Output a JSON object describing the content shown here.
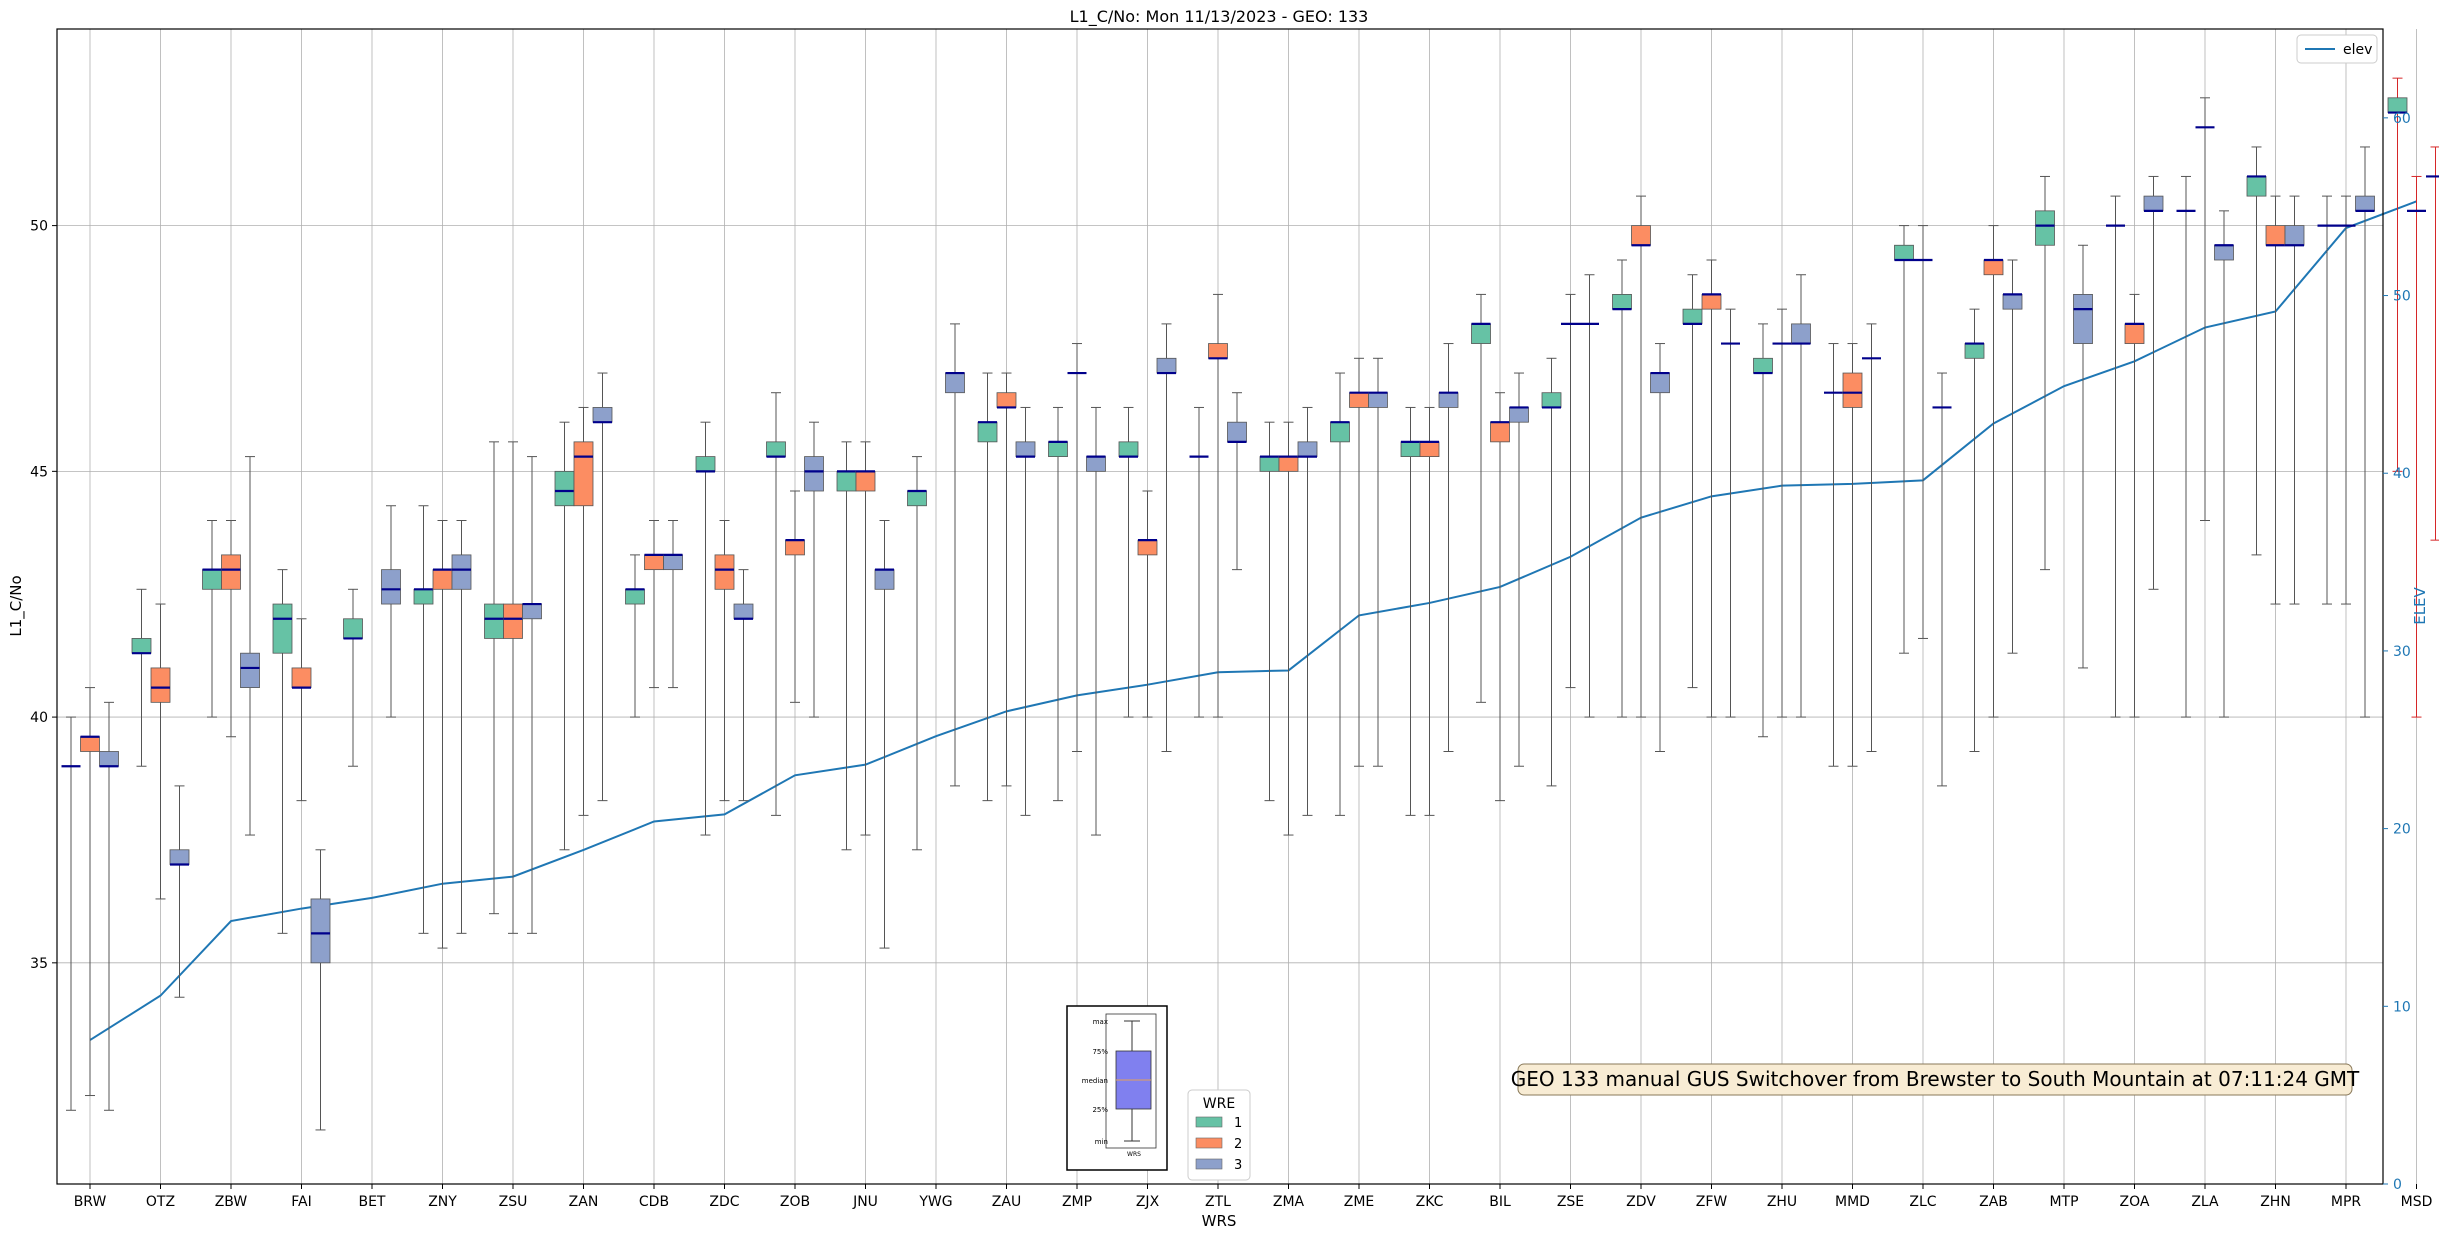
{
  "chart_data": {
    "type": "box",
    "title": "L1_C/No: Mon 11/13/2023 - GEO: 133",
    "xlabel": "WRS",
    "ylabel": "L1_C/No",
    "y2label": "ELEV",
    "ylim": [
      30.5,
      54
    ],
    "y2lim": [
      0,
      65
    ],
    "yticks": [
      35,
      40,
      45,
      50
    ],
    "y2ticks": [
      0,
      10,
      20,
      30,
      40,
      50,
      60
    ],
    "grid": true,
    "categories": [
      "BRW",
      "OTZ",
      "ZBW",
      "FAI",
      "BET",
      "ZNY",
      "ZSU",
      "ZAN",
      "CDB",
      "ZDC",
      "ZOB",
      "JNU",
      "YWG",
      "ZAU",
      "ZMP",
      "ZJX",
      "ZTL",
      "ZMA",
      "ZME",
      "ZKC",
      "BIL",
      "ZSE",
      "ZDV",
      "ZFW",
      "ZHU",
      "MMD",
      "ZLC",
      "ZAB",
      "MTP",
      "ZOA",
      "ZLA",
      "ZHN",
      "MPR",
      "MSD"
    ],
    "wre_colors": {
      "1": "#66c2a5",
      "2": "#fc8d62",
      "3": "#8da0cb"
    },
    "boxes": [
      {
        "cat": "BRW",
        "wre": 1,
        "min": 32,
        "q1": 39,
        "median": 39,
        "q3": 39,
        "max": 40
      },
      {
        "cat": "BRW",
        "wre": 2,
        "min": 32.3,
        "q1": 39.3,
        "median": 39.6,
        "q3": 39.6,
        "max": 40.6
      },
      {
        "cat": "BRW",
        "wre": 3,
        "min": 32,
        "q1": 39,
        "median": 39,
        "q3": 39.3,
        "max": 40.3
      },
      {
        "cat": "OTZ",
        "wre": 1,
        "min": 39,
        "q1": 41.3,
        "median": 41.3,
        "q3": 41.6,
        "max": 42.6
      },
      {
        "cat": "OTZ",
        "wre": 2,
        "min": 36.3,
        "q1": 40.3,
        "median": 40.6,
        "q3": 41,
        "max": 42.3
      },
      {
        "cat": "OTZ",
        "wre": 3,
        "min": 34.3,
        "q1": 37,
        "median": 37,
        "q3": 37.3,
        "max": 38.6
      },
      {
        "cat": "ZBW",
        "wre": 1,
        "min": 40,
        "q1": 42.6,
        "median": 43,
        "q3": 43,
        "max": 44
      },
      {
        "cat": "ZBW",
        "wre": 2,
        "min": 39.6,
        "q1": 42.6,
        "median": 43,
        "q3": 43.3,
        "max": 44
      },
      {
        "cat": "ZBW",
        "wre": 3,
        "min": 37.6,
        "q1": 40.6,
        "median": 41,
        "q3": 41.3,
        "max": 45.3
      },
      {
        "cat": "FAI",
        "wre": 1,
        "min": 35.6,
        "q1": 41.3,
        "median": 42,
        "q3": 42.3,
        "max": 43
      },
      {
        "cat": "FAI",
        "wre": 2,
        "min": 38.3,
        "q1": 40.6,
        "median": 40.6,
        "q3": 41,
        "max": 42
      },
      {
        "cat": "FAI",
        "wre": 3,
        "min": 31.6,
        "q1": 35,
        "median": 35.6,
        "q3": 36.3,
        "max": 37.3
      },
      {
        "cat": "BET",
        "wre": 1,
        "min": 39,
        "q1": 41.6,
        "median": 41.6,
        "q3": 42,
        "max": 42.6
      },
      {
        "cat": "BET",
        "wre": 3,
        "min": 40,
        "q1": 42.3,
        "median": 42.6,
        "q3": 43,
        "max": 44.3
      },
      {
        "cat": "ZNY",
        "wre": 1,
        "min": 35.6,
        "q1": 42.3,
        "median": 42.6,
        "q3": 42.6,
        "max": 44.3
      },
      {
        "cat": "ZNY",
        "wre": 2,
        "min": 35.3,
        "q1": 42.6,
        "median": 43,
        "q3": 43,
        "max": 44
      },
      {
        "cat": "ZNY",
        "wre": 3,
        "min": 35.6,
        "q1": 42.6,
        "median": 43,
        "q3": 43.3,
        "max": 44
      },
      {
        "cat": "ZSU",
        "wre": 1,
        "min": 36,
        "q1": 41.6,
        "median": 42,
        "q3": 42.3,
        "max": 45.6
      },
      {
        "cat": "ZSU",
        "wre": 2,
        "min": 35.6,
        "q1": 41.6,
        "median": 42,
        "q3": 42.3,
        "max": 45.6
      },
      {
        "cat": "ZSU",
        "wre": 3,
        "min": 35.6,
        "q1": 42,
        "median": 42.3,
        "q3": 42.3,
        "max": 45.3
      },
      {
        "cat": "ZAN",
        "wre": 1,
        "min": 37.3,
        "q1": 44.3,
        "median": 44.6,
        "q3": 45,
        "max": 46
      },
      {
        "cat": "ZAN",
        "wre": 2,
        "min": 38,
        "q1": 44.3,
        "median": 45.3,
        "q3": 45.6,
        "max": 46.3
      },
      {
        "cat": "ZAN",
        "wre": 3,
        "min": 38.3,
        "q1": 46,
        "median": 46,
        "q3": 46.3,
        "max": 47
      },
      {
        "cat": "CDB",
        "wre": 1,
        "min": 40,
        "q1": 42.3,
        "median": 42.6,
        "q3": 42.6,
        "max": 43.3
      },
      {
        "cat": "CDB",
        "wre": 2,
        "min": 40.6,
        "q1": 43,
        "median": 43.3,
        "q3": 43.3,
        "max": 44
      },
      {
        "cat": "CDB",
        "wre": 3,
        "min": 40.6,
        "q1": 43,
        "median": 43.3,
        "q3": 43.3,
        "max": 44
      },
      {
        "cat": "ZDC",
        "wre": 1,
        "min": 37.6,
        "q1": 45,
        "median": 45,
        "q3": 45.3,
        "max": 46
      },
      {
        "cat": "ZDC",
        "wre": 2,
        "min": 38.3,
        "q1": 42.6,
        "median": 43,
        "q3": 43.3,
        "max": 44
      },
      {
        "cat": "ZDC",
        "wre": 3,
        "min": 38.3,
        "q1": 42,
        "median": 42,
        "q3": 42.3,
        "max": 43
      },
      {
        "cat": "ZOB",
        "wre": 1,
        "min": 38,
        "q1": 45.3,
        "median": 45.3,
        "q3": 45.6,
        "max": 46.6
      },
      {
        "cat": "ZOB",
        "wre": 2,
        "min": 40.3,
        "q1": 43.3,
        "median": 43.6,
        "q3": 43.6,
        "max": 44.6
      },
      {
        "cat": "ZOB",
        "wre": 3,
        "min": 40,
        "q1": 44.6,
        "median": 45,
        "q3": 45.3,
        "max": 46
      },
      {
        "cat": "JNU",
        "wre": 1,
        "min": 37.3,
        "q1": 44.6,
        "median": 45,
        "q3": 45,
        "max": 45.6
      },
      {
        "cat": "JNU",
        "wre": 2,
        "min": 37.6,
        "q1": 44.6,
        "median": 45,
        "q3": 45,
        "max": 45.6
      },
      {
        "cat": "JNU",
        "wre": 3,
        "min": 35.3,
        "q1": 42.6,
        "median": 43,
        "q3": 43,
        "max": 44
      },
      {
        "cat": "YWG",
        "wre": 1,
        "min": 37.3,
        "q1": 44.3,
        "median": 44.6,
        "q3": 44.6,
        "max": 45.3
      },
      {
        "cat": "YWG",
        "wre": 3,
        "min": 38.6,
        "q1": 46.6,
        "median": 47,
        "q3": 47,
        "max": 48
      },
      {
        "cat": "ZAU",
        "wre": 1,
        "min": 38.3,
        "q1": 45.6,
        "median": 46,
        "q3": 46,
        "max": 47
      },
      {
        "cat": "ZAU",
        "wre": 2,
        "min": 38.6,
        "q1": 46.3,
        "median": 46.3,
        "q3": 46.6,
        "max": 47
      },
      {
        "cat": "ZAU",
        "wre": 3,
        "min": 38,
        "q1": 45.3,
        "median": 45.3,
        "q3": 45.6,
        "max": 46.3
      },
      {
        "cat": "ZMP",
        "wre": 1,
        "min": 38.3,
        "q1": 45.3,
        "median": 45.6,
        "q3": 45.6,
        "max": 46.3
      },
      {
        "cat": "ZMP",
        "wre": 2,
        "min": 39.3,
        "q1": 47,
        "median": 47,
        "q3": 47,
        "max": 47.6
      },
      {
        "cat": "ZMP",
        "wre": 3,
        "min": 37.6,
        "q1": 45,
        "median": 45.3,
        "q3": 45.3,
        "max": 46.3
      },
      {
        "cat": "ZJX",
        "wre": 1,
        "min": 40,
        "q1": 45.3,
        "median": 45.3,
        "q3": 45.6,
        "max": 46.3
      },
      {
        "cat": "ZJX",
        "wre": 2,
        "min": 40,
        "q1": 43.3,
        "median": 43.6,
        "q3": 43.6,
        "max": 44.6
      },
      {
        "cat": "ZJX",
        "wre": 3,
        "min": 39.3,
        "q1": 47,
        "median": 47,
        "q3": 47.3,
        "max": 48
      },
      {
        "cat": "ZTL",
        "wre": 1,
        "min": 40,
        "q1": 45.3,
        "median": 45.3,
        "q3": 45.3,
        "max": 46.3
      },
      {
        "cat": "ZTL",
        "wre": 2,
        "min": 40,
        "q1": 47.3,
        "median": 47.3,
        "q3": 47.6,
        "max": 48.6
      },
      {
        "cat": "ZTL",
        "wre": 3,
        "min": 43,
        "q1": 45.6,
        "median": 45.6,
        "q3": 46,
        "max": 46.6
      },
      {
        "cat": "ZMA",
        "wre": 1,
        "min": 38.3,
        "q1": 45,
        "median": 45.3,
        "q3": 45.3,
        "max": 46
      },
      {
        "cat": "ZMA",
        "wre": 2,
        "min": 37.6,
        "q1": 45,
        "median": 45.3,
        "q3": 45.3,
        "max": 46
      },
      {
        "cat": "ZMA",
        "wre": 3,
        "min": 38,
        "q1": 45.3,
        "median": 45.3,
        "q3": 45.6,
        "max": 46.3
      },
      {
        "cat": "ZME",
        "wre": 1,
        "min": 38,
        "q1": 45.6,
        "median": 46,
        "q3": 46,
        "max": 47
      },
      {
        "cat": "ZME",
        "wre": 2,
        "min": 39,
        "q1": 46.3,
        "median": 46.6,
        "q3": 46.6,
        "max": 47.3
      },
      {
        "cat": "ZME",
        "wre": 3,
        "min": 39,
        "q1": 46.3,
        "median": 46.6,
        "q3": 46.6,
        "max": 47.3
      },
      {
        "cat": "ZKC",
        "wre": 1,
        "min": 38,
        "q1": 45.3,
        "median": 45.6,
        "q3": 45.6,
        "max": 46.3
      },
      {
        "cat": "ZKC",
        "wre": 2,
        "min": 38,
        "q1": 45.3,
        "median": 45.6,
        "q3": 45.6,
        "max": 46.3
      },
      {
        "cat": "ZKC",
        "wre": 3,
        "min": 39.3,
        "q1": 46.3,
        "median": 46.6,
        "q3": 46.6,
        "max": 47.6
      },
      {
        "cat": "BIL",
        "wre": 1,
        "min": 40.3,
        "q1": 47.6,
        "median": 48,
        "q3": 48,
        "max": 48.6
      },
      {
        "cat": "BIL",
        "wre": 2,
        "min": 38.3,
        "q1": 45.6,
        "median": 46,
        "q3": 46,
        "max": 46.6
      },
      {
        "cat": "BIL",
        "wre": 3,
        "min": 39,
        "q1": 46,
        "median": 46.3,
        "q3": 46.3,
        "max": 47
      },
      {
        "cat": "ZSE",
        "wre": 1,
        "min": 38.6,
        "q1": 46.3,
        "median": 46.3,
        "q3": 46.6,
        "max": 47.3
      },
      {
        "cat": "ZSE",
        "wre": 2,
        "min": 40.6,
        "q1": 48,
        "median": 48,
        "q3": 48,
        "max": 48.6
      },
      {
        "cat": "ZSE",
        "wre": 3,
        "min": 40,
        "q1": 48,
        "median": 48,
        "q3": 48,
        "max": 49
      },
      {
        "cat": "ZDV",
        "wre": 1,
        "min": 40,
        "q1": 48.3,
        "median": 48.3,
        "q3": 48.6,
        "max": 49.3
      },
      {
        "cat": "ZDV",
        "wre": 2,
        "min": 40,
        "q1": 49.6,
        "median": 49.6,
        "q3": 50,
        "max": 50.6
      },
      {
        "cat": "ZDV",
        "wre": 3,
        "min": 39.3,
        "q1": 46.6,
        "median": 47,
        "q3": 47,
        "max": 47.6
      },
      {
        "cat": "ZFW",
        "wre": 1,
        "min": 40.6,
        "q1": 48,
        "median": 48,
        "q3": 48.3,
        "max": 49
      },
      {
        "cat": "ZFW",
        "wre": 2,
        "min": 40,
        "q1": 48.3,
        "median": 48.6,
        "q3": 48.6,
        "max": 49.3
      },
      {
        "cat": "ZFW",
        "wre": 3,
        "min": 40,
        "q1": 47.6,
        "median": 47.6,
        "q3": 47.6,
        "max": 48.3
      },
      {
        "cat": "ZHU",
        "wre": 1,
        "min": 39.6,
        "q1": 47,
        "median": 47,
        "q3": 47.3,
        "max": 48
      },
      {
        "cat": "ZHU",
        "wre": 2,
        "min": 40,
        "q1": 47.6,
        "median": 47.6,
        "q3": 47.6,
        "max": 48.3
      },
      {
        "cat": "ZHU",
        "wre": 3,
        "min": 40,
        "q1": 47.6,
        "median": 47.6,
        "q3": 48,
        "max": 49
      },
      {
        "cat": "MMD",
        "wre": 1,
        "min": 39,
        "q1": 46.6,
        "median": 46.6,
        "q3": 46.6,
        "max": 47.6
      },
      {
        "cat": "MMD",
        "wre": 2,
        "min": 39,
        "q1": 46.3,
        "median": 46.6,
        "q3": 47,
        "max": 47.6
      },
      {
        "cat": "MMD",
        "wre": 3,
        "min": 39.3,
        "q1": 47.3,
        "median": 47.3,
        "q3": 47.3,
        "max": 48
      },
      {
        "cat": "ZLC",
        "wre": 1,
        "min": 41.3,
        "q1": 49.3,
        "median": 49.3,
        "q3": 49.6,
        "max": 50
      },
      {
        "cat": "ZLC",
        "wre": 2,
        "min": 41.6,
        "q1": 49.3,
        "median": 49.3,
        "q3": 49.3,
        "max": 50
      },
      {
        "cat": "ZLC",
        "wre": 3,
        "min": 38.6,
        "q1": 46.3,
        "median": 46.3,
        "q3": 46.3,
        "max": 47
      },
      {
        "cat": "ZAB",
        "wre": 1,
        "min": 39.3,
        "q1": 47.3,
        "median": 47.6,
        "q3": 47.6,
        "max": 48.3
      },
      {
        "cat": "ZAB",
        "wre": 2,
        "min": 40,
        "q1": 49,
        "median": 49.3,
        "q3": 49.3,
        "max": 50
      },
      {
        "cat": "ZAB",
        "wre": 3,
        "min": 41.3,
        "q1": 48.3,
        "median": 48.6,
        "q3": 48.6,
        "max": 49.3
      },
      {
        "cat": "MTP",
        "wre": 1,
        "min": 43,
        "q1": 49.6,
        "median": 50,
        "q3": 50.3,
        "max": 51
      },
      {
        "cat": "MTP",
        "wre": 3,
        "min": 41,
        "q1": 47.6,
        "median": 48.3,
        "q3": 48.6,
        "max": 49.6
      },
      {
        "cat": "ZOA",
        "wre": 1,
        "min": 40,
        "q1": 50,
        "median": 50,
        "q3": 50,
        "max": 50.6
      },
      {
        "cat": "ZOA",
        "wre": 2,
        "min": 40,
        "q1": 47.6,
        "median": 48,
        "q3": 48,
        "max": 48.6
      },
      {
        "cat": "ZOA",
        "wre": 3,
        "min": 42.6,
        "q1": 50.3,
        "median": 50.3,
        "q3": 50.6,
        "max": 51
      },
      {
        "cat": "ZLA",
        "wre": 1,
        "min": 40,
        "q1": 50.3,
        "median": 50.3,
        "q3": 50.3,
        "max": 51
      },
      {
        "cat": "ZLA",
        "wre": 2,
        "min": 44,
        "q1": 52,
        "median": 52,
        "q3": 52,
        "max": 52.6
      },
      {
        "cat": "ZLA",
        "wre": 3,
        "min": 40,
        "q1": 49.3,
        "median": 49.6,
        "q3": 49.6,
        "max": 50.3
      },
      {
        "cat": "ZHN",
        "wre": 1,
        "min": 43.3,
        "q1": 50.6,
        "median": 51,
        "q3": 51,
        "max": 51.6
      },
      {
        "cat": "ZHN",
        "wre": 2,
        "min": 42.3,
        "q1": 49.6,
        "median": 49.6,
        "q3": 50,
        "max": 50.6
      },
      {
        "cat": "ZHN",
        "wre": 3,
        "min": 42.3,
        "q1": 49.6,
        "median": 49.6,
        "q3": 50,
        "max": 50.6
      },
      {
        "cat": "MPR",
        "wre": 1,
        "min": 42.3,
        "q1": 50,
        "median": 50,
        "q3": 50,
        "max": 50.6
      },
      {
        "cat": "MPR",
        "wre": 2,
        "min": 42.3,
        "q1": 50,
        "median": 50,
        "q3": 50,
        "max": 50.6
      },
      {
        "cat": "MPR",
        "wre": 3,
        "min": 40,
        "q1": 50.3,
        "median": 50.3,
        "q3": 50.6,
        "max": 51.6
      },
      {
        "cat": "MSD",
        "wre": 1,
        "min": 45,
        "q1": 52.3,
        "median": 52.3,
        "q3": 52.6,
        "max": 53
      },
      {
        "cat": "MSD",
        "wre": 2,
        "min": 40,
        "q1": 50.3,
        "median": 50.3,
        "q3": 50.3,
        "max": 51
      },
      {
        "cat": "MSD",
        "wre": 3,
        "min": 43.6,
        "q1": 51,
        "median": 51,
        "q3": 51,
        "max": 51.6
      }
    ],
    "red_whisker_cats": [
      "MSD"
    ],
    "elev_series": {
      "name": "elev",
      "values": [
        8.1,
        10.6,
        14.8,
        15.5,
        16.1,
        16.9,
        17.3,
        18.8,
        20.4,
        20.8,
        23.0,
        23.6,
        25.2,
        26.6,
        27.5,
        28.1,
        28.8,
        28.9,
        32.0,
        32.7,
        33.6,
        35.3,
        37.5,
        38.7,
        39.3,
        39.4,
        39.6,
        42.8,
        44.9,
        46.3,
        48.2,
        49.1,
        53.8,
        55.3
      ]
    },
    "legend_elev": {
      "label": "elev",
      "placement": "top-right"
    },
    "legend_wre": {
      "title": "WRE",
      "items": [
        "1",
        "2",
        "3"
      ],
      "placement": "bottom-center"
    },
    "key_diagram": {
      "labels": [
        "max",
        "75%",
        "median",
        "25%",
        "min"
      ],
      "xlabel": "WRS"
    },
    "annotation": "GEO 133 manual GUS Switchover from Brewster to South Mountain at 07:11:24 GMT"
  }
}
